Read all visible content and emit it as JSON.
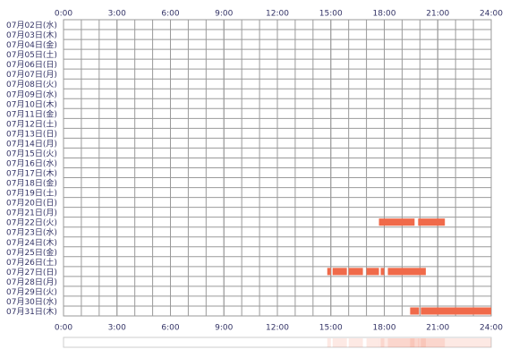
{
  "chart_data": {
    "type": "timeline",
    "categories": [
      "07月02日(水)",
      "07月03日(木)",
      "07月04日(金)",
      "07月05日(土)",
      "07月06日(日)",
      "07月07日(月)",
      "07月08日(火)",
      "07月09日(水)",
      "07月10日(木)",
      "07月11日(金)",
      "07月12日(土)",
      "07月13日(日)",
      "07月14日(月)",
      "07月15日(火)",
      "07月16日(水)",
      "07月17日(木)",
      "07月18日(金)",
      "07月19日(土)",
      "07月20日(日)",
      "07月21日(月)",
      "07月22日(火)",
      "07月23日(水)",
      "07月24日(木)",
      "07月25日(金)",
      "07月26日(土)",
      "07月27日(日)",
      "07月28日(月)",
      "07月29日(火)",
      "07月30日(水)",
      "07月31日(木)"
    ],
    "segments": [
      [],
      [],
      [],
      [],
      [],
      [],
      [],
      [],
      [],
      [],
      [],
      [],
      [],
      [],
      [],
      [],
      [],
      [],
      [],
      [],
      [
        [
          17.7,
          19.7
        ],
        [
          19.9,
          21.4
        ]
      ],
      [],
      [],
      [],
      [],
      [
        [
          14.8,
          15.0
        ],
        [
          15.1,
          15.9
        ],
        [
          16.0,
          16.8
        ],
        [
          17.0,
          17.7
        ],
        [
          17.8,
          18.0
        ],
        [
          18.2,
          20.33
        ]
      ],
      [],
      [],
      [],
      [
        [
          19.45,
          19.95
        ],
        [
          20.05,
          24
        ]
      ]
    ],
    "color": "#f06a4a",
    "xlim": [
      0,
      24
    ],
    "xticks": [
      {
        "value": 0,
        "label": "0:00"
      },
      {
        "value": 3,
        "label": "3:00"
      },
      {
        "value": 6,
        "label": "6:00"
      },
      {
        "value": 9,
        "label": "9:00"
      },
      {
        "value": 12,
        "label": "12:00"
      },
      {
        "value": 15,
        "label": "15:00"
      },
      {
        "value": 18,
        "label": "18:00"
      },
      {
        "value": 21,
        "label": "21:00"
      },
      {
        "value": 24,
        "label": "24:00"
      }
    ],
    "x_grid_step": 1,
    "grid": true
  }
}
